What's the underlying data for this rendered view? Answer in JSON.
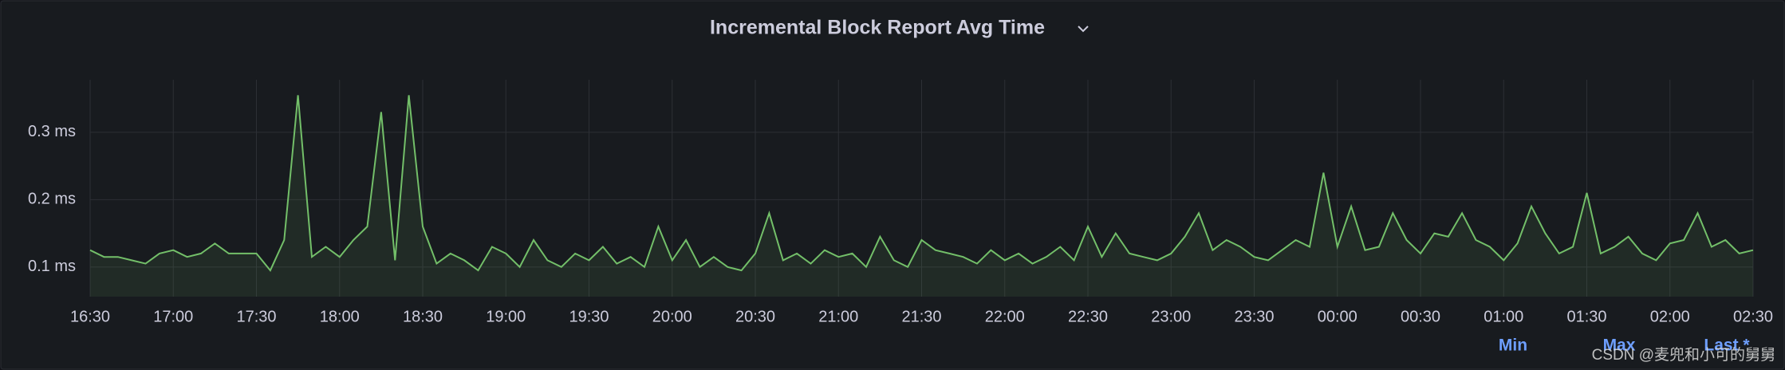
{
  "chart_data": {
    "type": "line",
    "title": "Incremental Block Report Avg Time",
    "x": [
      "16:30",
      "16:35",
      "16:40",
      "16:45",
      "16:50",
      "16:55",
      "17:00",
      "17:05",
      "17:10",
      "17:15",
      "17:20",
      "17:25",
      "17:30",
      "17:35",
      "17:40",
      "17:45",
      "17:50",
      "17:55",
      "18:00",
      "18:05",
      "18:10",
      "18:15",
      "18:20",
      "18:25",
      "18:30",
      "18:35",
      "18:40",
      "18:45",
      "18:50",
      "18:55",
      "19:00",
      "19:05",
      "19:10",
      "19:15",
      "19:20",
      "19:25",
      "19:30",
      "19:35",
      "19:40",
      "19:45",
      "19:50",
      "19:55",
      "20:00",
      "20:05",
      "20:10",
      "20:15",
      "20:20",
      "20:25",
      "20:30",
      "20:35",
      "20:40",
      "20:45",
      "20:50",
      "20:55",
      "21:00",
      "21:05",
      "21:10",
      "21:15",
      "21:20",
      "21:25",
      "21:30",
      "21:35",
      "21:40",
      "21:45",
      "21:50",
      "21:55",
      "22:00",
      "22:05",
      "22:10",
      "22:15",
      "22:20",
      "22:25",
      "22:30",
      "22:35",
      "22:40",
      "22:45",
      "22:50",
      "22:55",
      "23:00",
      "23:05",
      "23:10",
      "23:15",
      "23:20",
      "23:25",
      "23:30",
      "23:35",
      "23:40",
      "23:45",
      "23:50",
      "23:55",
      "00:00",
      "00:05",
      "00:10",
      "00:15",
      "00:20",
      "00:25",
      "00:30",
      "00:35",
      "00:40",
      "00:45",
      "00:50",
      "00:55",
      "01:00",
      "01:05",
      "01:10",
      "01:15",
      "01:20",
      "01:25",
      "01:30",
      "01:35",
      "01:40",
      "01:45",
      "01:50",
      "01:55",
      "02:00",
      "02:05",
      "02:10",
      "02:15",
      "02:20",
      "02:25",
      "02:30"
    ],
    "series": [
      {
        "color": "#73bf69",
        "values": [
          0.125,
          0.115,
          0.115,
          0.11,
          0.105,
          0.12,
          0.125,
          0.115,
          0.12,
          0.135,
          0.12,
          0.12,
          0.12,
          0.095,
          0.14,
          0.355,
          0.115,
          0.13,
          0.115,
          0.14,
          0.16,
          0.33,
          0.11,
          0.355,
          0.16,
          0.105,
          0.12,
          0.11,
          0.095,
          0.13,
          0.12,
          0.1,
          0.14,
          0.11,
          0.1,
          0.12,
          0.11,
          0.13,
          0.105,
          0.115,
          0.1,
          0.16,
          0.11,
          0.14,
          0.1,
          0.115,
          0.1,
          0.095,
          0.12,
          0.18,
          0.11,
          0.12,
          0.105,
          0.125,
          0.115,
          0.12,
          0.1,
          0.145,
          0.11,
          0.1,
          0.14,
          0.125,
          0.12,
          0.115,
          0.105,
          0.125,
          0.11,
          0.12,
          0.105,
          0.115,
          0.13,
          0.11,
          0.16,
          0.115,
          0.15,
          0.12,
          0.115,
          0.11,
          0.12,
          0.145,
          0.18,
          0.125,
          0.14,
          0.13,
          0.115,
          0.11,
          0.125,
          0.14,
          0.13,
          0.24,
          0.13,
          0.19,
          0.125,
          0.13,
          0.18,
          0.14,
          0.12,
          0.15,
          0.145,
          0.18,
          0.14,
          0.13,
          0.11,
          0.135,
          0.19,
          0.15,
          0.12,
          0.13,
          0.21,
          0.12,
          0.13,
          0.145,
          0.12,
          0.11,
          0.135,
          0.14,
          0.18,
          0.13,
          0.14,
          0.12,
          0.125
        ]
      }
    ],
    "ylim": [
      0.056,
      0.378
    ],
    "yticks": [
      {
        "value": 0.1,
        "label": "0.1 ms"
      },
      {
        "value": 0.2,
        "label": "0.2 ms"
      },
      {
        "value": 0.3,
        "label": "0.3 ms"
      }
    ],
    "xtick_every": 6,
    "grid": true,
    "legend_columns": [
      "Min",
      "Max",
      "Last *"
    ]
  },
  "watermark": "CSDN @麦兜和小可的舅舅"
}
